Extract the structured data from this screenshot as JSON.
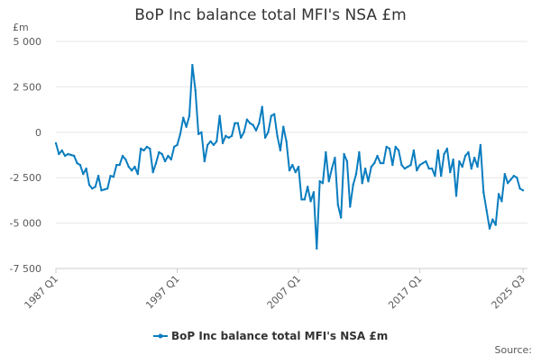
{
  "chart_data": {
    "type": "line",
    "title": "BoP Inc balance total MFI's NSA £m",
    "y_unit": "£m",
    "source": "Source:",
    "ylim": [
      -7500,
      5000
    ],
    "yticks": [
      {
        "value": -7500,
        "label": "-7 500"
      },
      {
        "value": -5000,
        "label": "-5 000"
      },
      {
        "value": -2500,
        "label": "-2 500"
      },
      0,
      {
        "value": 2500,
        "label": "2 500"
      },
      {
        "value": 5000,
        "label": "5 000"
      }
    ],
    "grid": true,
    "legend": "bottom",
    "categories": [
      "1987 Q1",
      null,
      null,
      null,
      null,
      null,
      null,
      null,
      null,
      null,
      null,
      null,
      null,
      null,
      null,
      null,
      null,
      null,
      null,
      null,
      null,
      null,
      null,
      null,
      null,
      null,
      null,
      null,
      null,
      null,
      null,
      null,
      null,
      null,
      null,
      null,
      null,
      null,
      null,
      null,
      "1997 Q1",
      null,
      null,
      null,
      null,
      null,
      null,
      null,
      null,
      null,
      null,
      null,
      null,
      null,
      null,
      null,
      null,
      null,
      null,
      null,
      null,
      null,
      null,
      null,
      null,
      null,
      null,
      null,
      null,
      null,
      null,
      null,
      null,
      null,
      null,
      null,
      null,
      null,
      null,
      null,
      "2007 Q1",
      null,
      null,
      null,
      null,
      null,
      null,
      null,
      null,
      null,
      null,
      null,
      null,
      null,
      null,
      null,
      null,
      null,
      null,
      null,
      null,
      null,
      null,
      null,
      null,
      null,
      null,
      null,
      null,
      null,
      null,
      null,
      null,
      null,
      null,
      null,
      null,
      null,
      null,
      null,
      "2017 Q1",
      null,
      null,
      null,
      null,
      null,
      null,
      null,
      null,
      null,
      null,
      null,
      null,
      null,
      null,
      null,
      null,
      null,
      null,
      null,
      null,
      null,
      null,
      null,
      null,
      null,
      null,
      null,
      null,
      null,
      null,
      null,
      null,
      null,
      "2025 Q3"
    ],
    "series": [
      {
        "name": "BoP Inc balance total MFI's NSA £m",
        "color": "#0a7dbf",
        "values": [
          -600,
          -1200,
          -1000,
          -1300,
          -1200,
          -1250,
          -1300,
          -1700,
          -1800,
          -2300,
          -2000,
          -2900,
          -3100,
          -3000,
          -2400,
          -3200,
          -3150,
          -3100,
          -2400,
          -2450,
          -1800,
          -1800,
          -1300,
          -1500,
          -1900,
          -2100,
          -1900,
          -2300,
          -900,
          -1000,
          -800,
          -900,
          -2200,
          -1700,
          -1100,
          -1200,
          -1600,
          -1300,
          -1500,
          -800,
          -700,
          -100,
          800,
          300,
          900,
          3700,
          2300,
          -100,
          0,
          -1600,
          -700,
          -500,
          -700,
          -500,
          900,
          -600,
          -200,
          -300,
          -200,
          500,
          500,
          -300,
          0,
          700,
          500,
          400,
          100,
          500,
          1400,
          -300,
          0,
          900,
          1000,
          -200,
          -1000,
          300,
          -500,
          -2100,
          -1800,
          -2200,
          -1900,
          -3700,
          -3700,
          -3000,
          -3800,
          -3300,
          -6400,
          -2700,
          -2800,
          -1100,
          -2700,
          -2000,
          -1400,
          -4000,
          -4700,
          -1200,
          -1600,
          -4100,
          -2900,
          -2300,
          -1100,
          -2800,
          -2000,
          -2700,
          -1900,
          -1700,
          -1300,
          -1700,
          -1700,
          -800,
          -900,
          -1800,
          -800,
          -1000,
          -1800,
          -2000,
          -1900,
          -1800,
          -1000,
          -2100,
          -1800,
          -1700,
          -1600,
          -2000,
          -2000,
          -2400,
          -1000,
          -2400,
          -1200,
          -900,
          -2200,
          -1500,
          -3500,
          -1600,
          -1900,
          -1300,
          -1100,
          -2000,
          -1400,
          -1900,
          -700,
          -3300,
          -4300,
          -5300,
          -4800,
          -5100,
          -3400,
          -3800,
          -2300,
          -2800,
          -2600,
          -2400,
          -2500,
          -3100,
          -3200
        ]
      }
    ]
  }
}
